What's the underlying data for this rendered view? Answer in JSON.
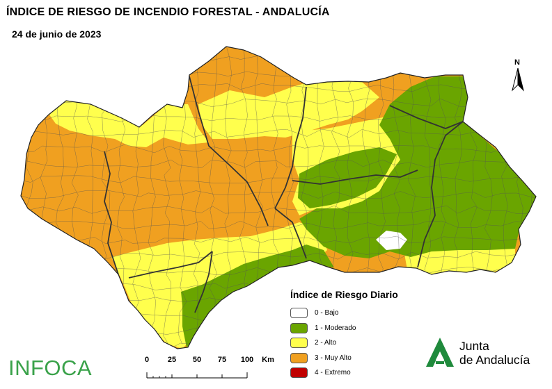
{
  "title": "ÍNDICE DE RIESGO DE INCENDIO FORESTAL - ANDALUCÍA",
  "date": "24 de junio de 2023",
  "north_label": "N",
  "legend": {
    "title": "Índice de Riesgo Diario",
    "items": [
      {
        "label": "0 - Bajo",
        "color": "#ffffff"
      },
      {
        "label": "1 - Moderado",
        "color": "#6aa500"
      },
      {
        "label": "2 - Alto",
        "color": "#ffff4d"
      },
      {
        "label": "3 - Muy Alto",
        "color": "#f0a020"
      },
      {
        "label": "4 - Extremo",
        "color": "#c00000"
      }
    ]
  },
  "scale": {
    "labels": [
      "0",
      "25",
      "50",
      "75",
      "100"
    ],
    "unit": "Km"
  },
  "logos": {
    "infoca": "INFOCA",
    "junta_line1": "Junta",
    "junta_line2": "de Andalucía"
  },
  "colors": {
    "moderado": "#6aa500",
    "alto": "#ffff4d",
    "muy_alto": "#f0a020",
    "border": "#333333",
    "infoca_green": "#3aa24a",
    "junta_green": "#1f8a3c"
  }
}
